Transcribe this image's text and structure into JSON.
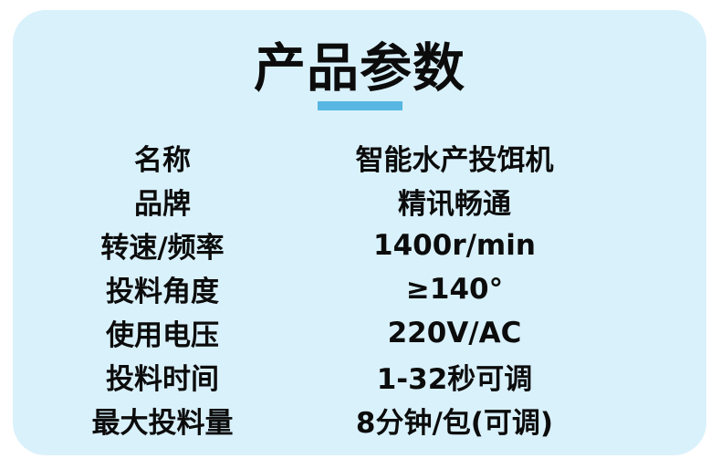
{
  "page": {
    "background_color": "#ffffff",
    "card_background_color": "#d9f1fb",
    "accent_color": "#57b7e2"
  },
  "header": {
    "title": "产品参数"
  },
  "specs": {
    "rows": [
      {
        "label": "名称",
        "value": "智能水产投饵机"
      },
      {
        "label": "品牌",
        "value": "精讯畅通"
      },
      {
        "label": "转速/频率",
        "value": "1400r/min"
      },
      {
        "label": "投料角度",
        "value": "≥140°"
      },
      {
        "label": "使用电压",
        "value": "220V/AC"
      },
      {
        "label": "投料时间",
        "value": "1-32秒可调"
      },
      {
        "label": "最大投料量",
        "value": "8分钟/包(可调)"
      }
    ]
  }
}
